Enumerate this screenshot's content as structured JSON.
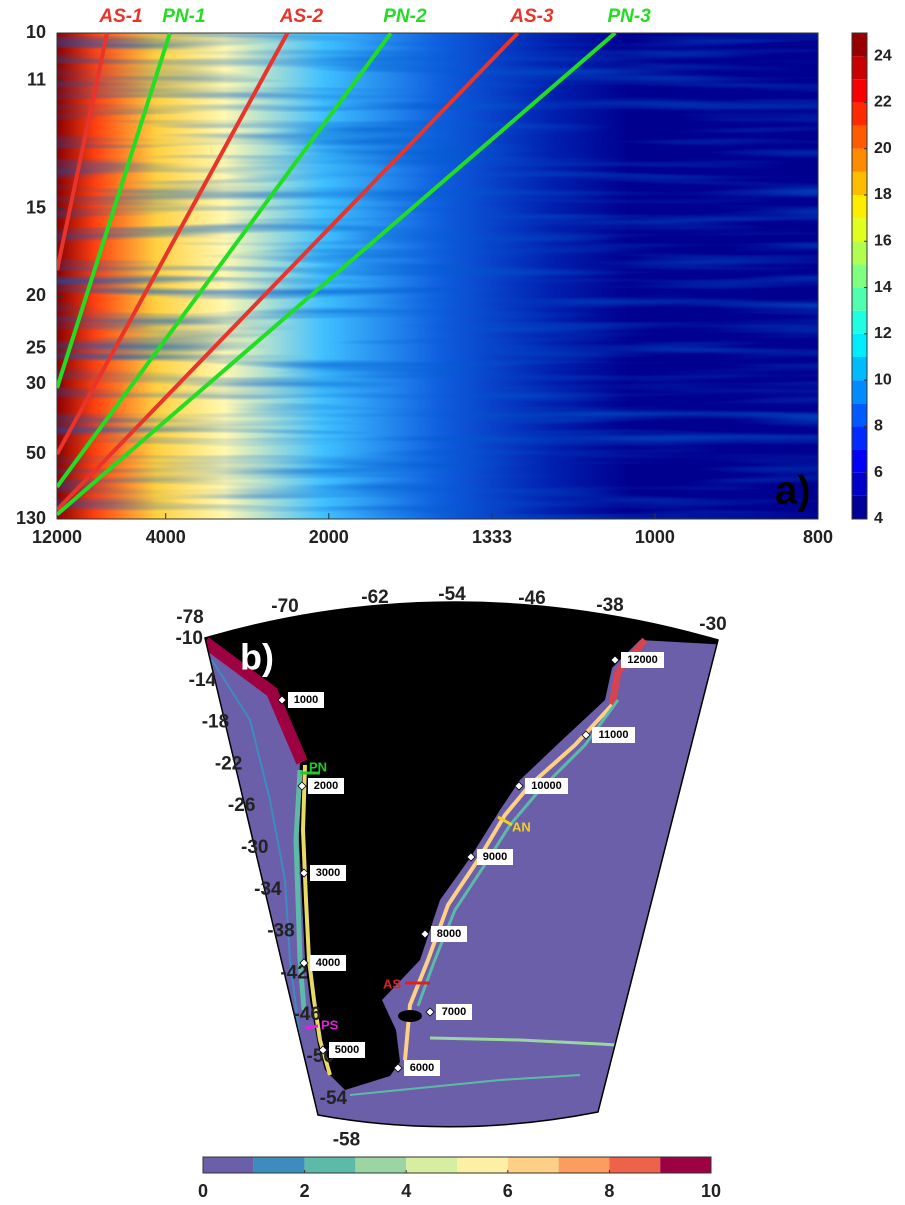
{
  "chart_data": [
    {
      "type": "heatmap",
      "panel_label": "a)",
      "xscale": "reciprocal",
      "yscale": "reciprocal",
      "xlim": [
        12000,
        800
      ],
      "ylim": [
        10,
        130
      ],
      "xticks": [
        12000,
        4000,
        2000,
        1333,
        1000,
        800
      ],
      "yticks": [
        10,
        11,
        15,
        20,
        25,
        30,
        50,
        130
      ],
      "series": [
        {
          "name": "AS-1",
          "color": "#e8342a",
          "x": [
            12000,
            6250
          ],
          "y": [
            18.2,
            10
          ]
        },
        {
          "name": "PN-1",
          "color": "#22dd22",
          "x": [
            12000,
            3900
          ],
          "y": [
            30.7,
            10
          ]
        },
        {
          "name": "AS-2",
          "color": "#e8342a",
          "x": [
            12000,
            2290
          ],
          "y": [
            50,
            10
          ]
        },
        {
          "name": "PN-2",
          "color": "#22dd22",
          "x": [
            12000,
            1680
          ],
          "y": [
            72.5,
            10
          ]
        },
        {
          "name": "AS-3",
          "color": "#e8342a",
          "x": [
            12000,
            1266
          ],
          "y": [
            106,
            10
          ]
        },
        {
          "name": "PN-3",
          "color": "#22dd22",
          "x": [
            12000,
            1065
          ],
          "y": [
            117,
            10
          ]
        }
      ],
      "colorbar": {
        "colormap": "jet",
        "clim": [
          4,
          25
        ],
        "ticks": [
          4,
          6,
          8,
          10,
          12,
          14,
          16,
          18,
          20,
          22,
          24
        ]
      }
    },
    {
      "type": "map",
      "panel_label": "b)",
      "lon_ticks": [
        -78,
        -70,
        -62,
        -54,
        -46,
        -38,
        -30
      ],
      "lat_ticks": [
        -10,
        -14,
        -18,
        -22,
        -26,
        -30,
        -34,
        -38,
        -42,
        -46,
        -50,
        -54,
        -58
      ],
      "distance_markers": [
        1000,
        2000,
        3000,
        4000,
        5000,
        6000,
        7000,
        8000,
        9000,
        10000,
        11000,
        12000
      ],
      "sections": [
        {
          "name": "PN",
          "color": "#22cc22"
        },
        {
          "name": "AN",
          "color": "#f0d020"
        },
        {
          "name": "AS",
          "color": "#e02020"
        },
        {
          "name": "PS",
          "color": "#e020e0"
        }
      ],
      "colorbar": {
        "colors": [
          "#6a5fa8",
          "#3d8cbf",
          "#5db9a8",
          "#9bd5a4",
          "#d6eea0",
          "#fbf0a4",
          "#fdd086",
          "#fa9d5e",
          "#ee6249",
          "#9e0142"
        ],
        "clim": [
          0,
          10
        ],
        "ticks": [
          0,
          2,
          4,
          6,
          8,
          10
        ]
      }
    }
  ]
}
